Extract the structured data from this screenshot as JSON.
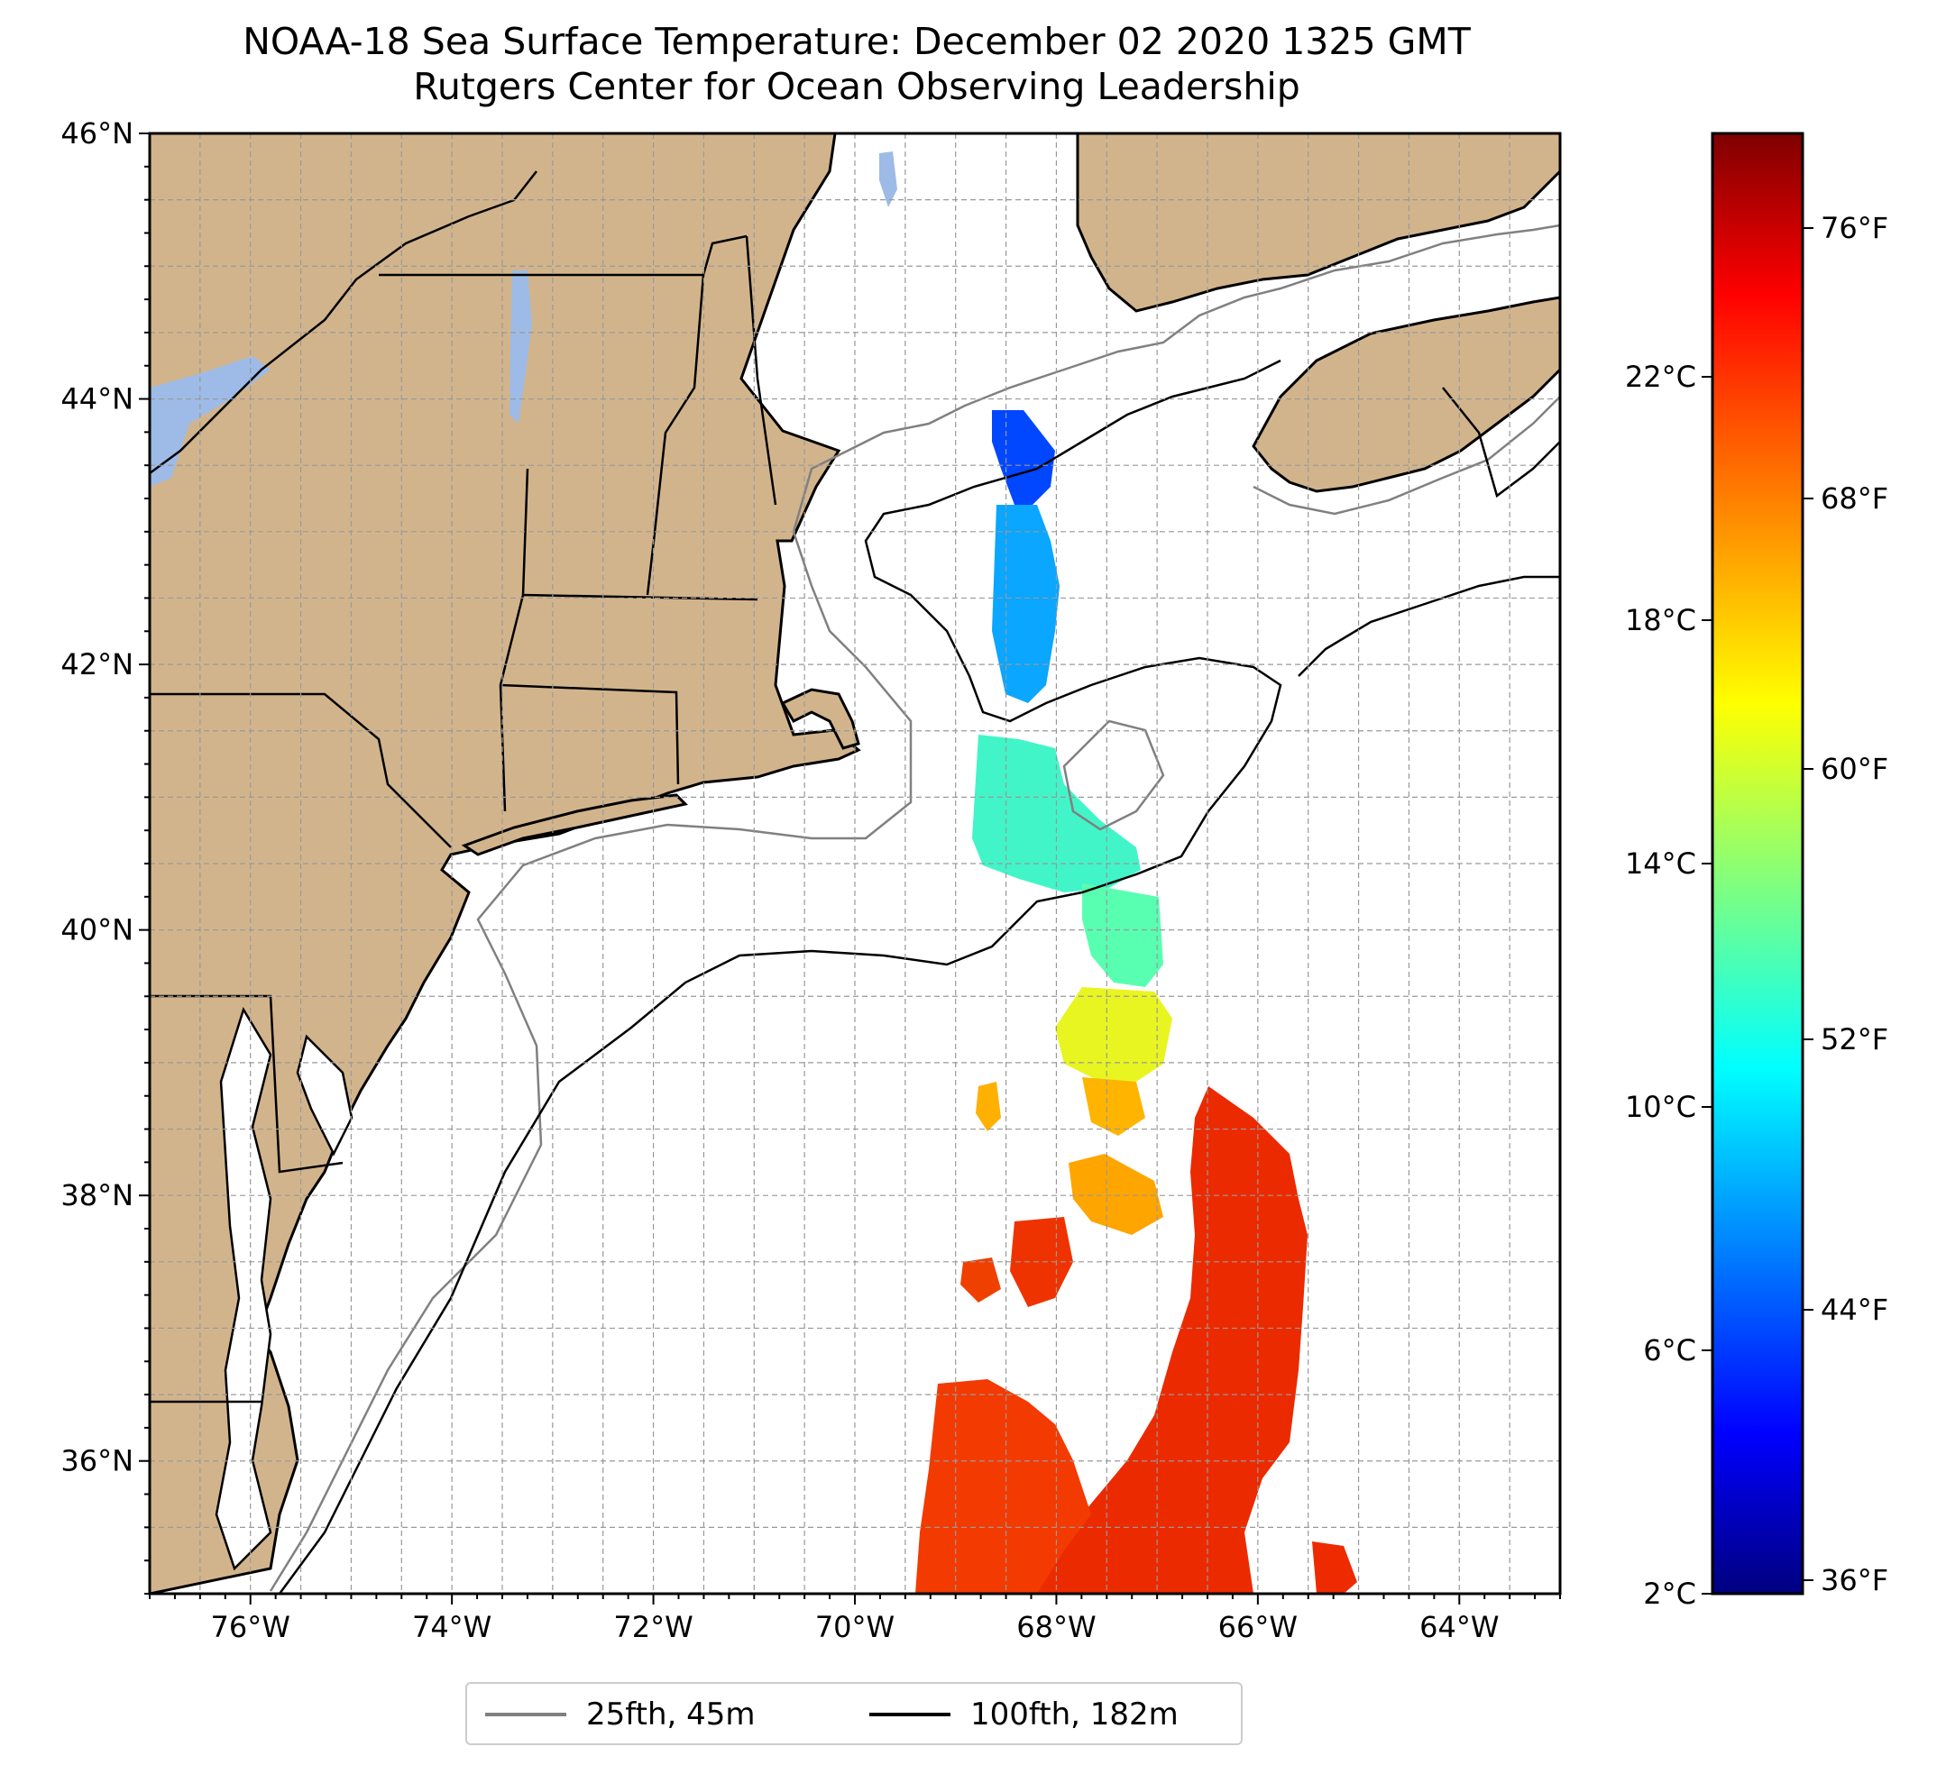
{
  "title": "NOAA-18 Sea Surface Temperature: December 02 2020 1325 GMT",
  "subtitle": "Rutgers Center for Ocean Observing Leadership",
  "map": {
    "extent": {
      "lon_min": -77.0,
      "lon_max": -63.0,
      "lat_min": 35.0,
      "lat_max": 46.0
    },
    "lat_ticks": [
      {
        "value": 46,
        "label": "46°N"
      },
      {
        "value": 44,
        "label": "44°N"
      },
      {
        "value": 42,
        "label": "42°N"
      },
      {
        "value": 40,
        "label": "40°N"
      },
      {
        "value": 38,
        "label": "38°N"
      },
      {
        "value": 36,
        "label": "36°N"
      }
    ],
    "lon_ticks": [
      {
        "value": -76,
        "label": "76°W"
      },
      {
        "value": -74,
        "label": "74°W"
      },
      {
        "value": -72,
        "label": "72°W"
      },
      {
        "value": -70,
        "label": "70°W"
      },
      {
        "value": -68,
        "label": "68°W"
      },
      {
        "value": -66,
        "label": "66°W"
      },
      {
        "value": -64,
        "label": "64°W"
      }
    ],
    "grid": true,
    "land_color": "#d2b48c",
    "lake_color": "#9dbbe6",
    "ocean_color": "#ffffff"
  },
  "colorbar": {
    "colormap": "jet",
    "c_min": 2,
    "c_max": 26,
    "celsius_ticks": [
      {
        "value": 2,
        "label": "2°C"
      },
      {
        "value": 6,
        "label": "6°C"
      },
      {
        "value": 10,
        "label": "10°C"
      },
      {
        "value": 14,
        "label": "14°C"
      },
      {
        "value": 18,
        "label": "18°C"
      },
      {
        "value": 22,
        "label": "22°C"
      }
    ],
    "fahrenheit_ticks": [
      {
        "value": 36,
        "label": "36°F"
      },
      {
        "value": 44,
        "label": "44°F"
      },
      {
        "value": 52,
        "label": "52°F"
      },
      {
        "value": 60,
        "label": "60°F"
      },
      {
        "value": 68,
        "label": "68°F"
      },
      {
        "value": 76,
        "label": "76°F"
      }
    ]
  },
  "legend": {
    "placement": "bottom-center",
    "entries": [
      {
        "label": "25fth, 45m",
        "color": "#808080"
      },
      {
        "label": "100fth, 182m",
        "color": "#000000"
      }
    ]
  }
}
